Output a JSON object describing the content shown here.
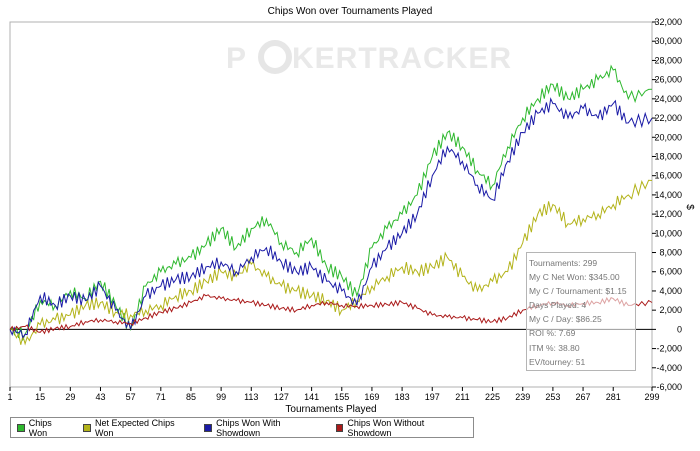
{
  "chart_data": {
    "type": "line",
    "title": "Chips Won over Tournaments Played",
    "xlabel": "Tournaments Played",
    "ylabel": "$",
    "xlim": [
      1,
      299
    ],
    "ylim": [
      -6000,
      32000
    ],
    "x_ticks": [
      1,
      15,
      29,
      43,
      57,
      71,
      85,
      99,
      113,
      127,
      141,
      155,
      169,
      183,
      197,
      211,
      225,
      239,
      253,
      267,
      281,
      299
    ],
    "y_ticks": [
      32000,
      30000,
      28000,
      26000,
      24000,
      22000,
      20000,
      18000,
      16000,
      14000,
      12000,
      10000,
      8000,
      6000,
      4000,
      2000,
      0,
      -2000,
      -4000,
      -6000
    ],
    "y_tick_labels": [
      "32,000",
      "30,000",
      "28,000",
      "26,000",
      "24,000",
      "22,000",
      "20,000",
      "18,000",
      "16,000",
      "14,000",
      "12,000",
      "10,000",
      "8,000",
      "6,000",
      "4,000",
      "2,000",
      "0",
      "-2,000",
      "-4,000",
      "-6,000"
    ],
    "grid": false,
    "legend_position": "bottom",
    "watermark": "POKERTRACKER",
    "series": [
      {
        "name": "Chips Won",
        "color": "#2eb82e",
        "x": [
          1,
          8,
          15,
          22,
          29,
          36,
          43,
          50,
          57,
          64,
          71,
          78,
          85,
          92,
          99,
          106,
          113,
          120,
          127,
          134,
          141,
          148,
          155,
          162,
          169,
          176,
          183,
          190,
          197,
          204,
          211,
          218,
          225,
          232,
          239,
          246,
          253,
          260,
          267,
          274,
          281,
          288,
          299
        ],
        "values": [
          0,
          -500,
          3000,
          2500,
          4000,
          3200,
          5000,
          2500,
          0,
          4500,
          6000,
          6800,
          7500,
          8800,
          10500,
          8500,
          10500,
          11500,
          9000,
          8000,
          9500,
          6500,
          5500,
          3500,
          8500,
          10500,
          12000,
          14000,
          18000,
          20500,
          19000,
          16500,
          15000,
          19000,
          22000,
          24000,
          25500,
          24000,
          25000,
          26000,
          27000,
          24000,
          25000
        ]
      },
      {
        "name": "Net Expected Chips Won",
        "color": "#b3b31a",
        "x": [
          1,
          8,
          15,
          22,
          29,
          36,
          43,
          50,
          57,
          64,
          71,
          78,
          85,
          92,
          99,
          106,
          113,
          120,
          127,
          134,
          141,
          148,
          155,
          162,
          169,
          176,
          183,
          190,
          197,
          204,
          211,
          218,
          225,
          232,
          239,
          246,
          253,
          260,
          267,
          274,
          281,
          288,
          299
        ],
        "values": [
          0,
          -1500,
          500,
          1000,
          1500,
          2500,
          2800,
          1800,
          1500,
          2000,
          2500,
          3500,
          4000,
          5000,
          6000,
          5500,
          6800,
          5500,
          4500,
          4000,
          3500,
          3000,
          2000,
          3000,
          4500,
          5500,
          6500,
          6000,
          6500,
          7500,
          5500,
          4000,
          5000,
          6000,
          9000,
          12000,
          13000,
          11000,
          11500,
          12000,
          13000,
          14000,
          15500
        ]
      },
      {
        "name": "Chips Won With Showdown",
        "color": "#1a1aa6",
        "x": [
          1,
          8,
          15,
          22,
          29,
          36,
          43,
          50,
          57,
          64,
          71,
          78,
          85,
          92,
          99,
          106,
          113,
          120,
          127,
          134,
          141,
          148,
          155,
          162,
          169,
          176,
          183,
          190,
          197,
          204,
          211,
          218,
          225,
          232,
          239,
          246,
          253,
          260,
          267,
          274,
          281,
          288,
          299
        ],
        "values": [
          0,
          -500,
          3500,
          2500,
          3500,
          3000,
          4500,
          2000,
          0,
          3500,
          4500,
          5200,
          5500,
          6500,
          7000,
          6000,
          7500,
          8500,
          7000,
          6000,
          6500,
          5000,
          4000,
          2500,
          6500,
          8500,
          10000,
          12000,
          16000,
          19000,
          17500,
          15000,
          13500,
          17500,
          20500,
          22500,
          23500,
          22000,
          23000,
          22000,
          23500,
          21500,
          22000
        ]
      },
      {
        "name": "Chips Won Without Showdown",
        "color": "#aa1a1a",
        "x": [
          1,
          8,
          15,
          22,
          29,
          36,
          43,
          50,
          57,
          64,
          71,
          78,
          85,
          92,
          99,
          106,
          113,
          120,
          127,
          134,
          141,
          148,
          155,
          162,
          169,
          176,
          183,
          190,
          197,
          204,
          211,
          218,
          225,
          232,
          239,
          246,
          253,
          260,
          267,
          274,
          281,
          288,
          299
        ],
        "values": [
          0,
          300,
          -300,
          100,
          300,
          800,
          1000,
          800,
          600,
          1200,
          1800,
          2200,
          2800,
          3500,
          3200,
          3000,
          2800,
          2500,
          2200,
          2000,
          2500,
          2800,
          2500,
          2400,
          2500,
          2600,
          2800,
          2200,
          1500,
          1300,
          1200,
          1000,
          800,
          1200,
          2000,
          2500,
          2800,
          2500,
          2700,
          2800,
          3200,
          2500,
          2800
        ]
      }
    ]
  },
  "stats_box": [
    "Tournaments: 299",
    "My C Net Won: $345.00",
    "My C / Tournament: $1.15",
    "Days Played: 4",
    "My C / Day: $86.25",
    "ROI %: 7.69",
    "ITM %: 38.80",
    "EV/tourney: 51"
  ]
}
